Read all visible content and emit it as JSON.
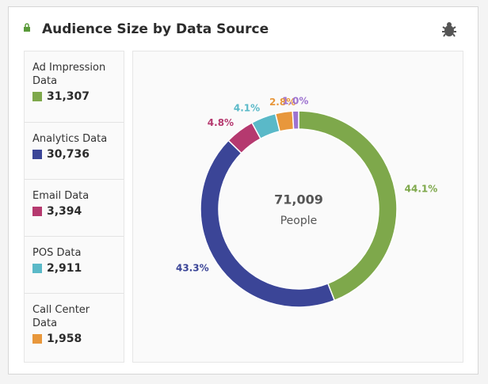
{
  "chart_data": {
    "type": "pie",
    "title": "Audience Size by Data Source",
    "categories": [
      "Ad Impression Data",
      "Analytics Data",
      "Email Data",
      "POS Data",
      "Call Center Data",
      null
    ],
    "colors": [
      "#7ea84b",
      "#3b4597",
      "#b5396f",
      "#5ab9c8",
      "#e8973b",
      "#9d72d0"
    ],
    "values": [
      44.1,
      43.3,
      4.8,
      4.1,
      2.8,
      1.0
    ],
    "value_labels": [
      "44.1%",
      "43.3%",
      "4.8%",
      "4.1%",
      "2.8%",
      "1.0%"
    ],
    "counts": [
      31307,
      30736,
      3394,
      2911,
      1958,
      null
    ],
    "count_labels": [
      "31,307",
      "30,736",
      "3,394",
      "2,911",
      "1,958",
      null
    ],
    "center_value": 71009,
    "center_value_label": "71,009",
    "center_label": "People"
  }
}
